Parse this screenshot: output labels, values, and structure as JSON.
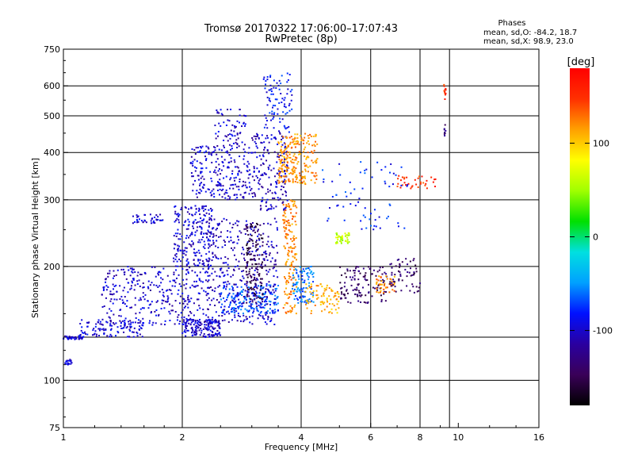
{
  "title": {
    "line1": "Tromsø 20170322 17:06:00–17:07:43",
    "line2": "RwPretec (8p)"
  },
  "phases": {
    "heading": "Phases",
    "o_stats": "mean, sd,O: -84.2, 18.7",
    "x_stats": "mean, sd,X:  98.9, 23.0"
  },
  "colorbar": {
    "unit": "[deg]",
    "tick_values": [
      100,
      0,
      -100
    ],
    "range": [
      -180,
      180
    ],
    "colors": [
      "#000000",
      "#3a0058",
      "#2a00a0",
      "#0010ff",
      "#00a0ff",
      "#00e0e0",
      "#00e000",
      "#a0ff00",
      "#ffff00",
      "#ffa000",
      "#ff3000",
      "#ff0000"
    ]
  },
  "chart_data": {
    "type": "scatter",
    "xlabel": "Frequency [MHz]",
    "ylabel": "Stationary phase Virtual Height [km]",
    "xscale": "log",
    "yscale": "log",
    "xlim": [
      1,
      16
    ],
    "ylim": [
      75,
      750
    ],
    "x_ticks": [
      1,
      2,
      4,
      6,
      8,
      10,
      16
    ],
    "x_tick_labels": [
      "1",
      "2",
      "4",
      "6",
      "8",
      "10",
      "16"
    ],
    "y_ticks": [
      75,
      100,
      200,
      300,
      400,
      500,
      600,
      750
    ],
    "y_tick_labels": [
      "75",
      "100",
      "200",
      "300",
      "400",
      "500",
      "600",
      "750"
    ],
    "x_grid": [
      2,
      4,
      6,
      8,
      9.5
    ],
    "y_grid": [
      100,
      130,
      200,
      300,
      400,
      500,
      600
    ],
    "grid": true,
    "color_variable": "phase [deg]",
    "clusters": [
      {
        "x": [
          1.0,
          1.12
        ],
        "y": [
          128,
          131
        ],
        "phase": -100,
        "n": 40
      },
      {
        "x": [
          1.01,
          1.06
        ],
        "y": [
          110,
          114
        ],
        "phase": -100,
        "n": 18
      },
      {
        "x": [
          1.1,
          1.6
        ],
        "y": [
          130,
          145
        ],
        "phase": -95,
        "n": 110
      },
      {
        "x": [
          1.25,
          2.3
        ],
        "y": [
          140,
          200
        ],
        "phase": -100,
        "n": 320
      },
      {
        "x": [
          1.5,
          1.8
        ],
        "y": [
          260,
          275
        ],
        "phase": -95,
        "n": 40
      },
      {
        "x": [
          1.9,
          2.4
        ],
        "y": [
          200,
          290
        ],
        "phase": -98,
        "n": 220
      },
      {
        "x": [
          2.0,
          2.5
        ],
        "y": [
          130,
          145
        ],
        "phase": -100,
        "n": 160
      },
      {
        "x": [
          2.1,
          3.0
        ],
        "y": [
          300,
          420
        ],
        "phase": -100,
        "n": 230
      },
      {
        "x": [
          2.4,
          2.9
        ],
        "y": [
          420,
          520
        ],
        "phase": -100,
        "n": 60
      },
      {
        "x": [
          2.5,
          3.5
        ],
        "y": [
          150,
          180
        ],
        "phase": -70,
        "n": 200
      },
      {
        "x": [
          2.3,
          3.5
        ],
        "y": [
          140,
          270
        ],
        "phase": -105,
        "n": 360
      },
      {
        "x": [
          2.9,
          3.2
        ],
        "y": [
          160,
          260
        ],
        "phase": -150,
        "n": 140
      },
      {
        "x": [
          3.0,
          3.7
        ],
        "y": [
          280,
          450
        ],
        "phase": -105,
        "n": 180
      },
      {
        "x": [
          3.2,
          3.8
        ],
        "y": [
          450,
          650
        ],
        "phase": -85,
        "n": 90
      },
      {
        "x": [
          3.5,
          4.4
        ],
        "y": [
          330,
          450
        ],
        "phase": 120,
        "n": 230
      },
      {
        "x": [
          3.6,
          3.9
        ],
        "y": [
          150,
          300
        ],
        "phase": 120,
        "n": 160
      },
      {
        "x": [
          3.8,
          4.3
        ],
        "y": [
          160,
          200
        ],
        "phase": -60,
        "n": 100
      },
      {
        "x": [
          4.1,
          5.0
        ],
        "y": [
          150,
          180
        ],
        "phase": 110,
        "n": 80
      },
      {
        "x": [
          4.9,
          5.3
        ],
        "y": [
          230,
          245
        ],
        "phase": 60,
        "n": 40
      },
      {
        "x": [
          5.0,
          6.6
        ],
        "y": [
          160,
          200
        ],
        "phase": -140,
        "n": 120
      },
      {
        "x": [
          6.2,
          6.9
        ],
        "y": [
          170,
          190
        ],
        "phase": 120,
        "n": 45
      },
      {
        "x": [
          6.7,
          8.0
        ],
        "y": [
          170,
          210
        ],
        "phase": -140,
        "n": 60
      },
      {
        "x": [
          7.0,
          8.8
        ],
        "y": [
          320,
          350
        ],
        "phase": 150,
        "n": 35
      },
      {
        "x": [
          4.5,
          7.5
        ],
        "y": [
          250,
          380
        ],
        "phase": -80,
        "n": 70
      },
      {
        "x": [
          9.2,
          9.3
        ],
        "y": [
          550,
          610
        ],
        "phase": 150,
        "n": 12
      },
      {
        "x": [
          9.2,
          9.3
        ],
        "y": [
          440,
          480
        ],
        "phase": -130,
        "n": 8
      }
    ]
  }
}
